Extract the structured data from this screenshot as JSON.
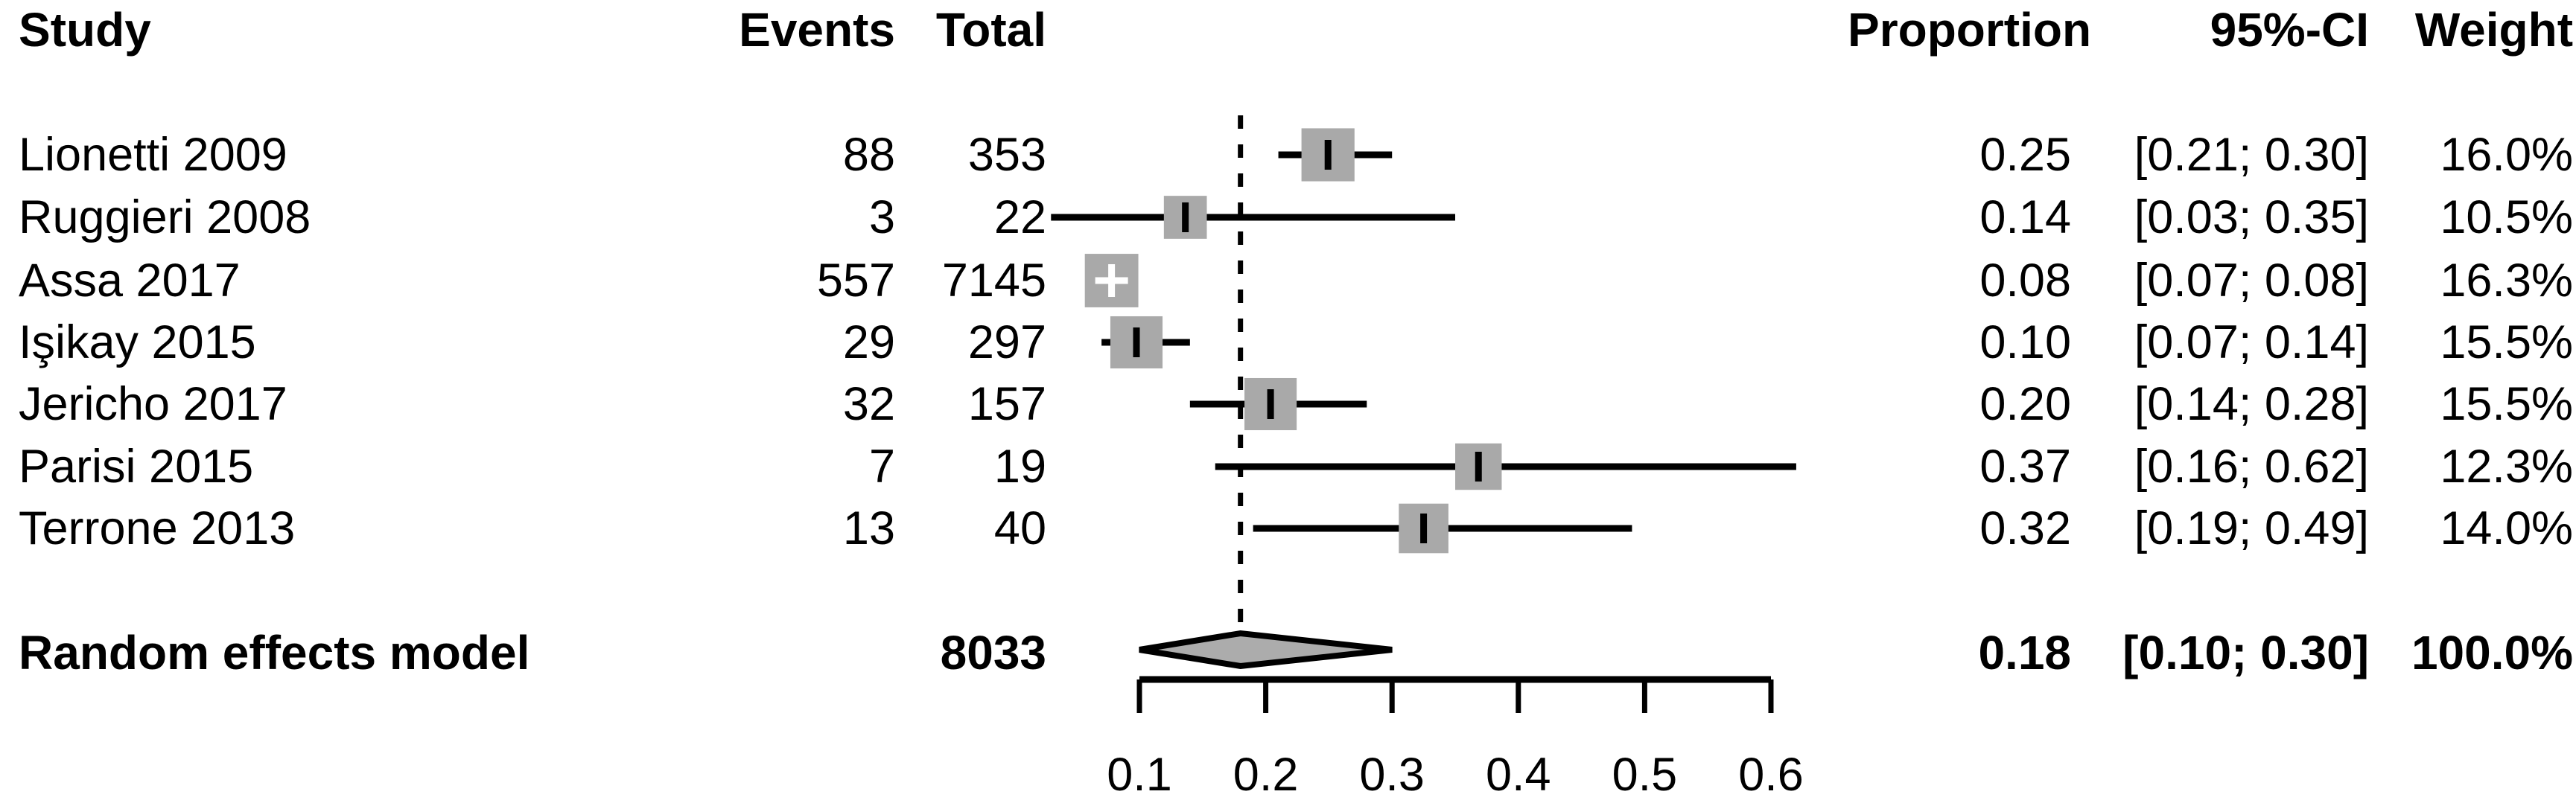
{
  "chart_data": {
    "type": "forest",
    "columns": {
      "study": "Study",
      "events": "Events",
      "total": "Total",
      "proportion": "Proportion",
      "ci": "95%-CI",
      "weight": "Weight"
    },
    "studies": [
      {
        "study": "Lionetti 2009",
        "events": 88,
        "total": 353,
        "proportion": "0.25",
        "ci": "[0.21; 0.30]",
        "ci_low": 0.21,
        "ci_high": 0.3,
        "weight": "16.0%",
        "weight_value": 16.0
      },
      {
        "study": "Ruggieri 2008",
        "events": 3,
        "total": 22,
        "proportion": "0.14",
        "ci": "[0.03; 0.35]",
        "ci_low": 0.03,
        "ci_high": 0.35,
        "weight": "10.5%",
        "weight_value": 10.5
      },
      {
        "study": "Assa 2017",
        "events": 557,
        "total": 7145,
        "proportion": "0.08",
        "ci": "[0.07; 0.08]",
        "ci_low": 0.07,
        "ci_high": 0.08,
        "weight": "16.3%",
        "weight_value": 16.3
      },
      {
        "study": "Işikay 2015",
        "events": 29,
        "total": 297,
        "proportion": "0.10",
        "ci": "[0.07; 0.14]",
        "ci_low": 0.07,
        "ci_high": 0.14,
        "weight": "15.5%",
        "weight_value": 15.5
      },
      {
        "study": "Jericho 2017",
        "events": 32,
        "total": 157,
        "proportion": "0.20",
        "ci": "[0.14; 0.28]",
        "ci_low": 0.14,
        "ci_high": 0.28,
        "weight": "15.5%",
        "weight_value": 15.5
      },
      {
        "study": "Parisi 2015",
        "events": 7,
        "total": 19,
        "proportion": "0.37",
        "ci": "[0.16; 0.62]",
        "ci_low": 0.16,
        "ci_high": 0.62,
        "weight": "12.3%",
        "weight_value": 12.3
      },
      {
        "study": "Terrone 2013",
        "events": 13,
        "total": 40,
        "proportion": "0.32",
        "ci": "[0.19; 0.49]",
        "ci_low": 0.19,
        "ci_high": 0.49,
        "weight": "14.0%",
        "weight_value": 14.0
      }
    ],
    "summary": {
      "label": "Random effects model",
      "total": 8033,
      "proportion": "0.18",
      "ci": "[0.10; 0.30]",
      "estimate": 0.18,
      "ci_low": 0.1,
      "ci_high": 0.3,
      "weight": "100.0%"
    },
    "axis": {
      "min": 0.1,
      "max": 0.6,
      "tick_values": [
        0.1,
        0.2,
        0.3,
        0.4,
        0.5,
        0.6
      ],
      "tick_labels": [
        "0.1",
        "0.2",
        "0.3",
        "0.4",
        "0.5",
        "0.6"
      ],
      "reference_line": 0.18
    },
    "colors": {
      "square": "#a9a9a9",
      "diamond_fill": "#acacac",
      "line": "#000000",
      "background": "#ffffff"
    }
  }
}
